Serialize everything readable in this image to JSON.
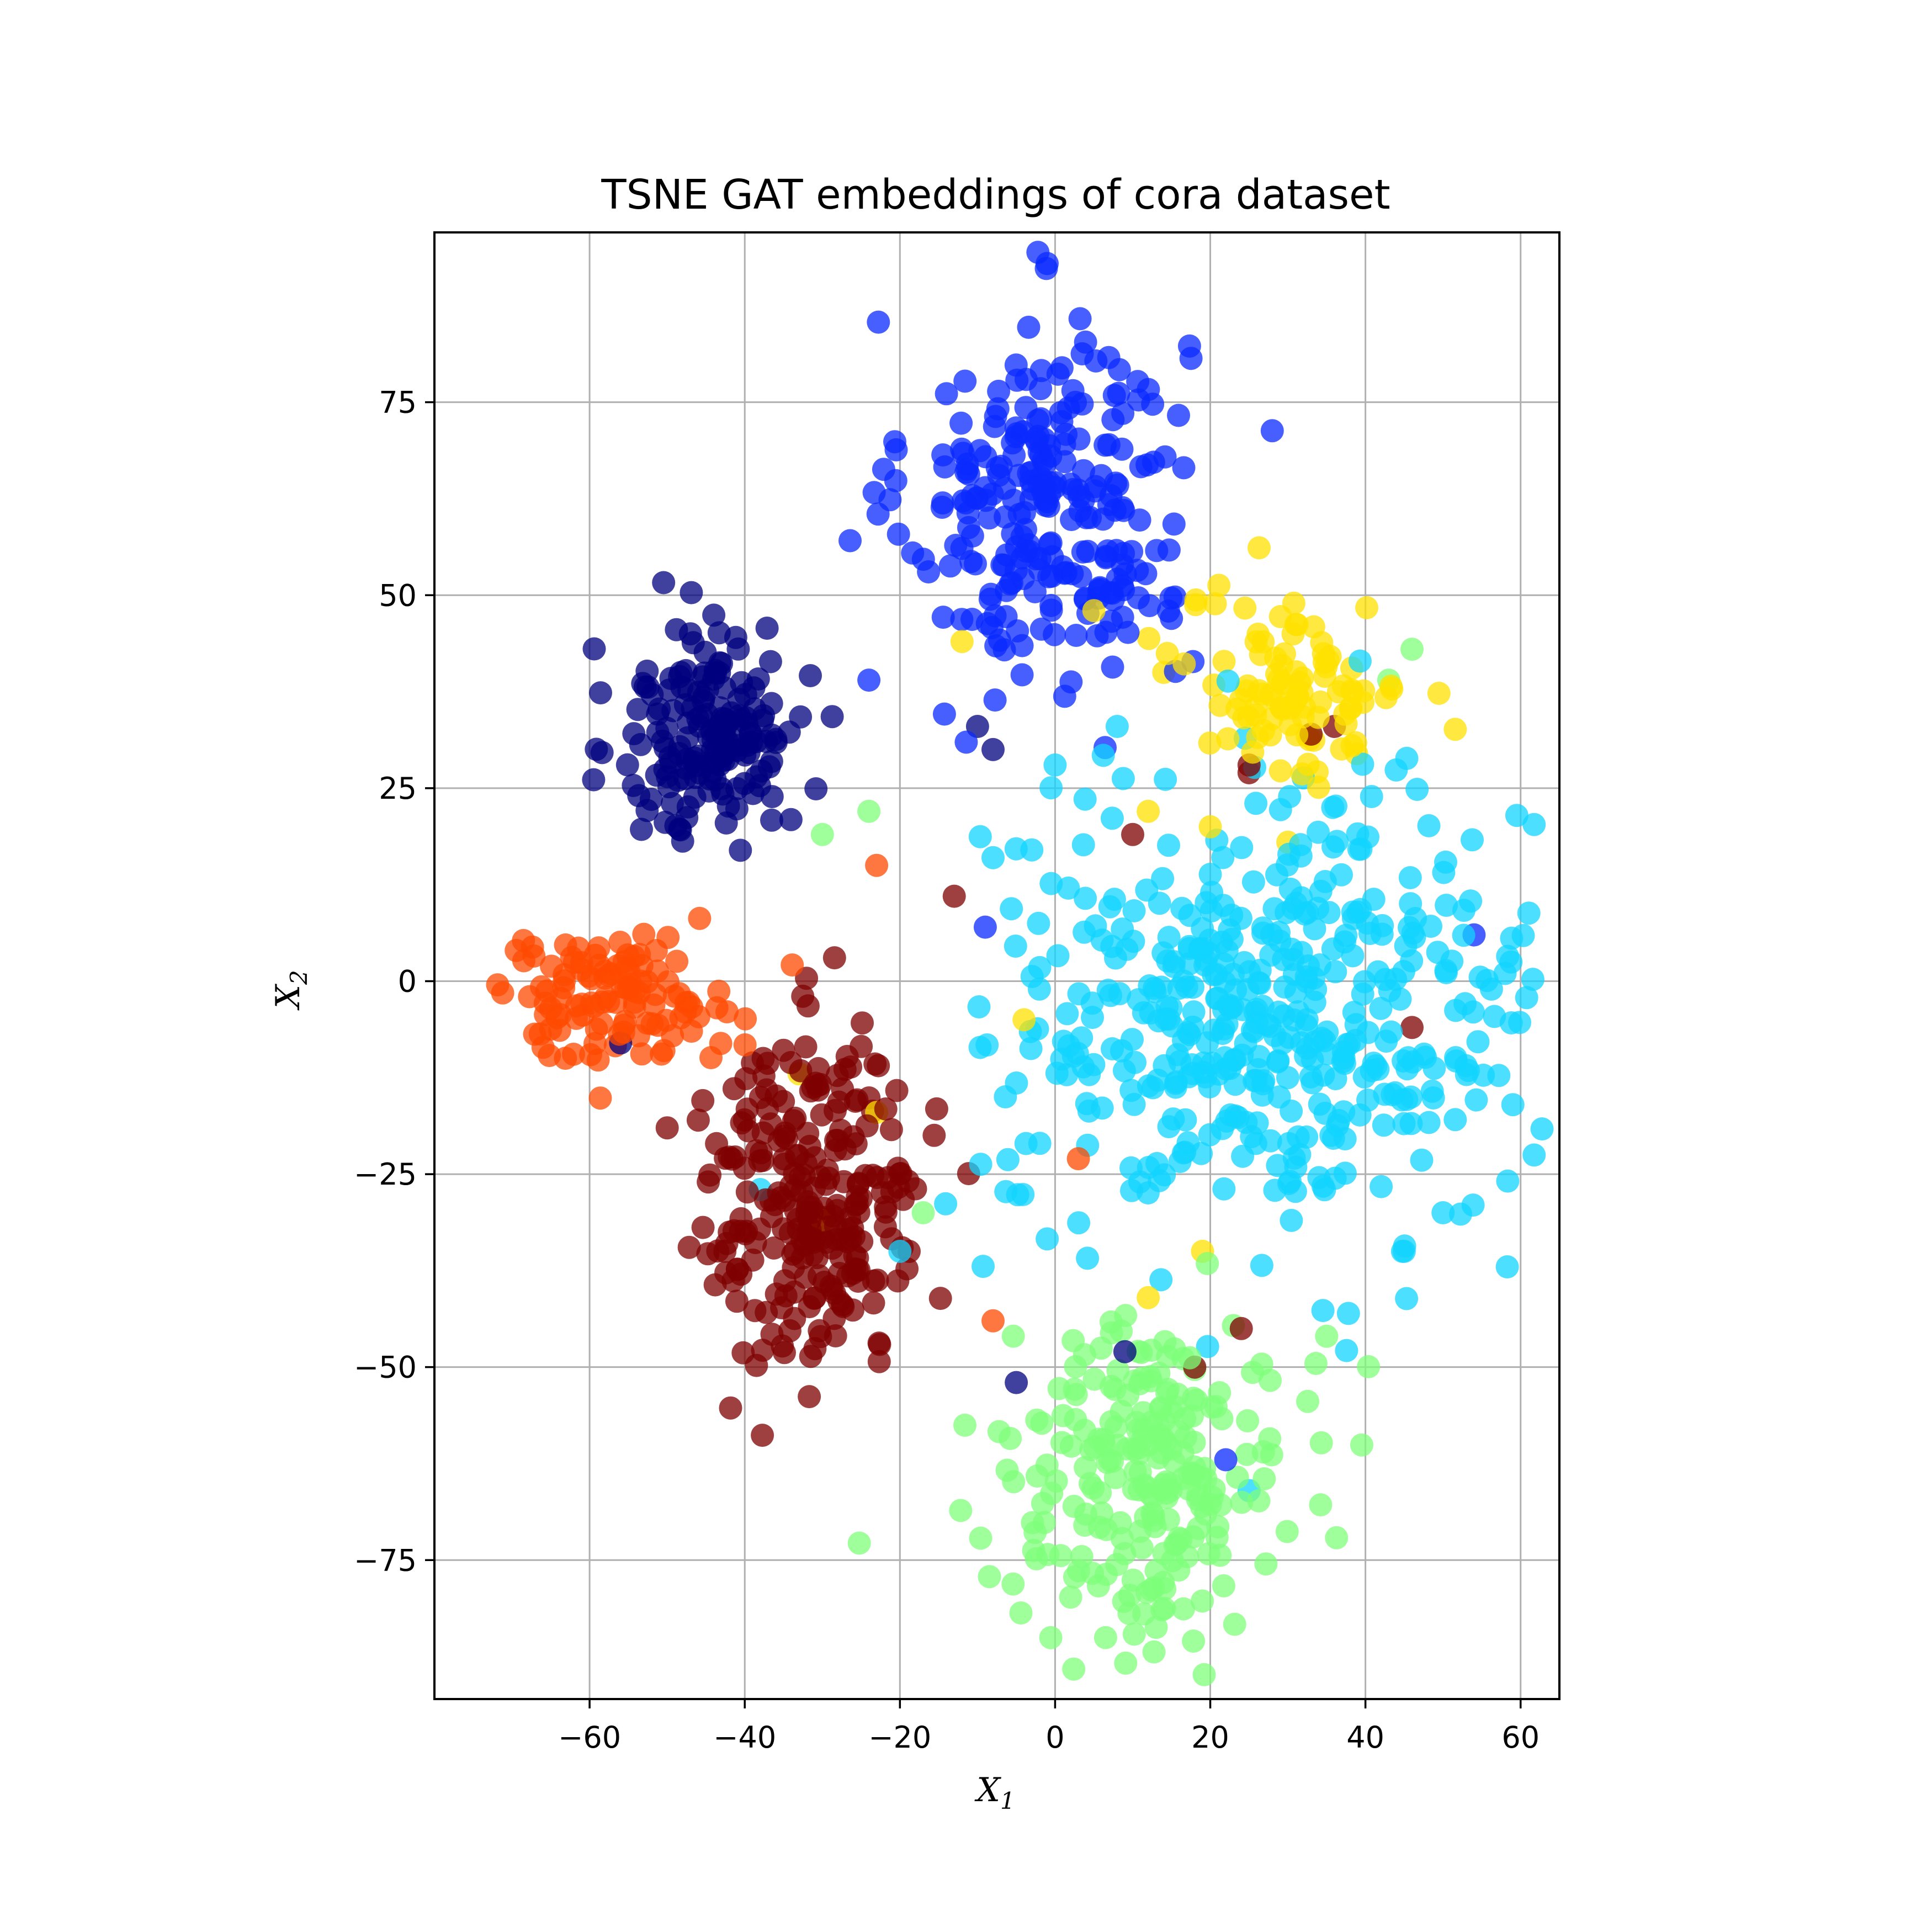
{
  "chart_data": {
    "type": "scatter",
    "title": "TSNE GAT embeddings of cora dataset",
    "xlabel": "X",
    "xlabel_sub": "1",
    "ylabel": "X",
    "ylabel_sub": "2",
    "xlim": [
      -80,
      65
    ],
    "ylim": [
      -93,
      97
    ],
    "xticks": [
      -60,
      -40,
      -20,
      0,
      20,
      40,
      60
    ],
    "xtick_labels": [
      "−60",
      "−40",
      "−20",
      "0",
      "20",
      "40",
      "60"
    ],
    "yticks": [
      -75,
      -50,
      -25,
      0,
      25,
      50,
      75
    ],
    "ytick_labels": [
      "−75",
      "−50",
      "−25",
      "0",
      "25",
      "50",
      "75"
    ],
    "grid": true,
    "legend": "none",
    "marker_alpha": 0.75,
    "clusters": [
      {
        "color": "#0a2aff",
        "center": [
          -1,
          62
        ],
        "spread": [
          9,
          12
        ],
        "count": 260
      },
      {
        "color": "#00007f",
        "center": [
          -44,
          32
        ],
        "spread": [
          6,
          7
        ],
        "count": 170
      },
      {
        "color": "#ffe100",
        "center": [
          31,
          38
        ],
        "spread": [
          7,
          6
        ],
        "count": 100
      },
      {
        "color": "#ff4a00",
        "center": [
          -57,
          -2
        ],
        "spread": [
          8,
          4
        ],
        "count": 120
      },
      {
        "color": "#7f0000",
        "center": [
          -31,
          -28
        ],
        "spread": [
          7,
          11
        ],
        "count": 260
      },
      {
        "color": "#12d4ff",
        "center": [
          28,
          -5
        ],
        "spread": [
          17,
          14
        ],
        "count": 480
      },
      {
        "color": "#7dff7a",
        "center": [
          12,
          -64
        ],
        "spread": [
          9,
          10
        ],
        "count": 240
      }
    ],
    "outliers": [
      {
        "x": -47,
        "y": 45,
        "color": "#00007f"
      },
      {
        "x": -24,
        "y": 39,
        "color": "#0a2aff"
      },
      {
        "x": -10,
        "y": 33,
        "color": "#00007f"
      },
      {
        "x": -8,
        "y": 30,
        "color": "#00007f"
      },
      {
        "x": 0,
        "y": 28,
        "color": "#12d4ff"
      },
      {
        "x": 8,
        "y": 33,
        "color": "#12d4ff"
      },
      {
        "x": 15,
        "y": 47,
        "color": "#0a2aff"
      },
      {
        "x": -8,
        "y": 16,
        "color": "#12d4ff"
      },
      {
        "x": -3,
        "y": 17,
        "color": "#12d4ff"
      },
      {
        "x": -30,
        "y": 19,
        "color": "#7dff7a"
      },
      {
        "x": -24,
        "y": 22,
        "color": "#7dff7a"
      },
      {
        "x": -23,
        "y": 15,
        "color": "#ff4a00"
      },
      {
        "x": -13,
        "y": 11,
        "color": "#7f0000"
      },
      {
        "x": -9,
        "y": 7,
        "color": "#0a2aff"
      },
      {
        "x": 10,
        "y": 19,
        "color": "#7f0000"
      },
      {
        "x": 12,
        "y": 22,
        "color": "#ffe100"
      },
      {
        "x": 20,
        "y": 20,
        "color": "#ffe100"
      },
      {
        "x": 30,
        "y": 18,
        "color": "#ffe100"
      },
      {
        "x": 25,
        "y": 28,
        "color": "#7f0000"
      },
      {
        "x": 46,
        "y": 43,
        "color": "#7dff7a"
      },
      {
        "x": 43,
        "y": 39,
        "color": "#7dff7a"
      },
      {
        "x": 54,
        "y": 6,
        "color": "#0a2aff"
      },
      {
        "x": 58,
        "y": 1,
        "color": "#12d4ff"
      },
      {
        "x": 59,
        "y": -16,
        "color": "#12d4ff"
      },
      {
        "x": 46,
        "y": -6,
        "color": "#7f0000"
      },
      {
        "x": -8,
        "y": -44,
        "color": "#ff4a00"
      },
      {
        "x": -5,
        "y": -52,
        "color": "#00007f"
      },
      {
        "x": 9,
        "y": -48,
        "color": "#00007f"
      },
      {
        "x": 12,
        "y": -41,
        "color": "#ffe100"
      },
      {
        "x": 24,
        "y": -45,
        "color": "#7f0000"
      },
      {
        "x": 19,
        "y": -35,
        "color": "#ffe100"
      },
      {
        "x": -30,
        "y": -31,
        "color": "#ffe100"
      },
      {
        "x": -23,
        "y": -17,
        "color": "#ffe100"
      },
      {
        "x": -33,
        "y": -12,
        "color": "#ffe100"
      },
      {
        "x": -4,
        "y": -5,
        "color": "#ffe100"
      },
      {
        "x": 3,
        "y": -23,
        "color": "#ff4a00"
      },
      {
        "x": 18,
        "y": -50,
        "color": "#7f0000"
      },
      {
        "x": 14,
        "y": 40,
        "color": "#ffe100"
      },
      {
        "x": -12,
        "y": 44,
        "color": "#ffe100"
      },
      {
        "x": 5,
        "y": 48,
        "color": "#ffe100"
      },
      {
        "x": -56,
        "y": -8,
        "color": "#00007f"
      },
      {
        "x": -46,
        "y": -18,
        "color": "#7f0000"
      },
      {
        "x": -50,
        "y": -19,
        "color": "#7f0000"
      },
      {
        "x": -38,
        "y": -27,
        "color": "#12d4ff"
      },
      {
        "x": 25,
        "y": 27,
        "color": "#7f0000"
      },
      {
        "x": 36,
        "y": 33,
        "color": "#7f0000"
      },
      {
        "x": 33,
        "y": 32,
        "color": "#7f0000"
      },
      {
        "x": -20,
        "y": -35,
        "color": "#12d4ff"
      },
      {
        "x": -17,
        "y": -30,
        "color": "#7dff7a"
      },
      {
        "x": 45,
        "y": -35,
        "color": "#12d4ff"
      },
      {
        "x": 50,
        "y": -30,
        "color": "#12d4ff"
      },
      {
        "x": 35,
        "y": -46,
        "color": "#7dff7a"
      },
      {
        "x": 25,
        "y": -66,
        "color": "#12d4ff"
      },
      {
        "x": 22,
        "y": -62,
        "color": "#0a2aff"
      }
    ]
  }
}
